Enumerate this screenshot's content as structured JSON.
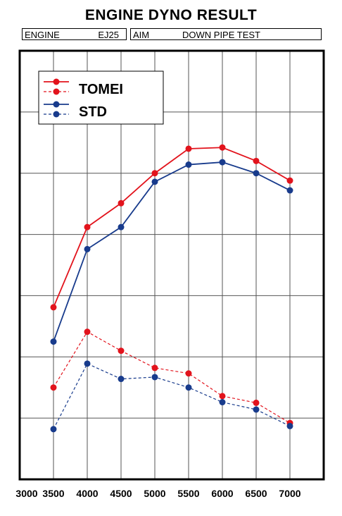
{
  "header": {
    "title": "ENGINE DYNO RESULT",
    "engine_label": "ENGINE",
    "engine_value": "EJ25",
    "aim_label": "AIM",
    "aim_value": "DOWN PIPE TEST"
  },
  "colors": {
    "tomei": "#e2131c",
    "std": "#183b8c"
  },
  "chart_data": {
    "type": "line",
    "title": "ENGINE DYNO RESULT",
    "xlabel": "",
    "ylabel": "",
    "x": [
      3500,
      4000,
      4500,
      5000,
      5500,
      6000,
      6500,
      7000
    ],
    "xlim": [
      3000,
      7500
    ],
    "x_ticks": [
      3000,
      3500,
      4000,
      4500,
      5000,
      5500,
      6000,
      6500,
      7000
    ],
    "ylim": [
      0,
      7
    ],
    "grid": true,
    "legend": "top-left",
    "series": [
      {
        "name": "TOMEI",
        "group": "upper",
        "style": "solid",
        "values": [
          2.81,
          4.12,
          4.51,
          5.0,
          5.4,
          5.42,
          5.2,
          4.88
        ]
      },
      {
        "name": "STD",
        "group": "upper",
        "style": "solid",
        "values": [
          2.25,
          3.76,
          4.12,
          4.86,
          5.14,
          5.18,
          5.0,
          4.72
        ]
      },
      {
        "name": "TOMEI",
        "group": "lower",
        "style": "dashed",
        "values": [
          1.5,
          2.41,
          2.1,
          1.82,
          1.73,
          1.36,
          1.25,
          0.92
        ]
      },
      {
        "name": "STD",
        "group": "lower",
        "style": "dashed",
        "values": [
          0.82,
          1.89,
          1.64,
          1.67,
          1.5,
          1.26,
          1.14,
          0.87
        ]
      }
    ]
  }
}
